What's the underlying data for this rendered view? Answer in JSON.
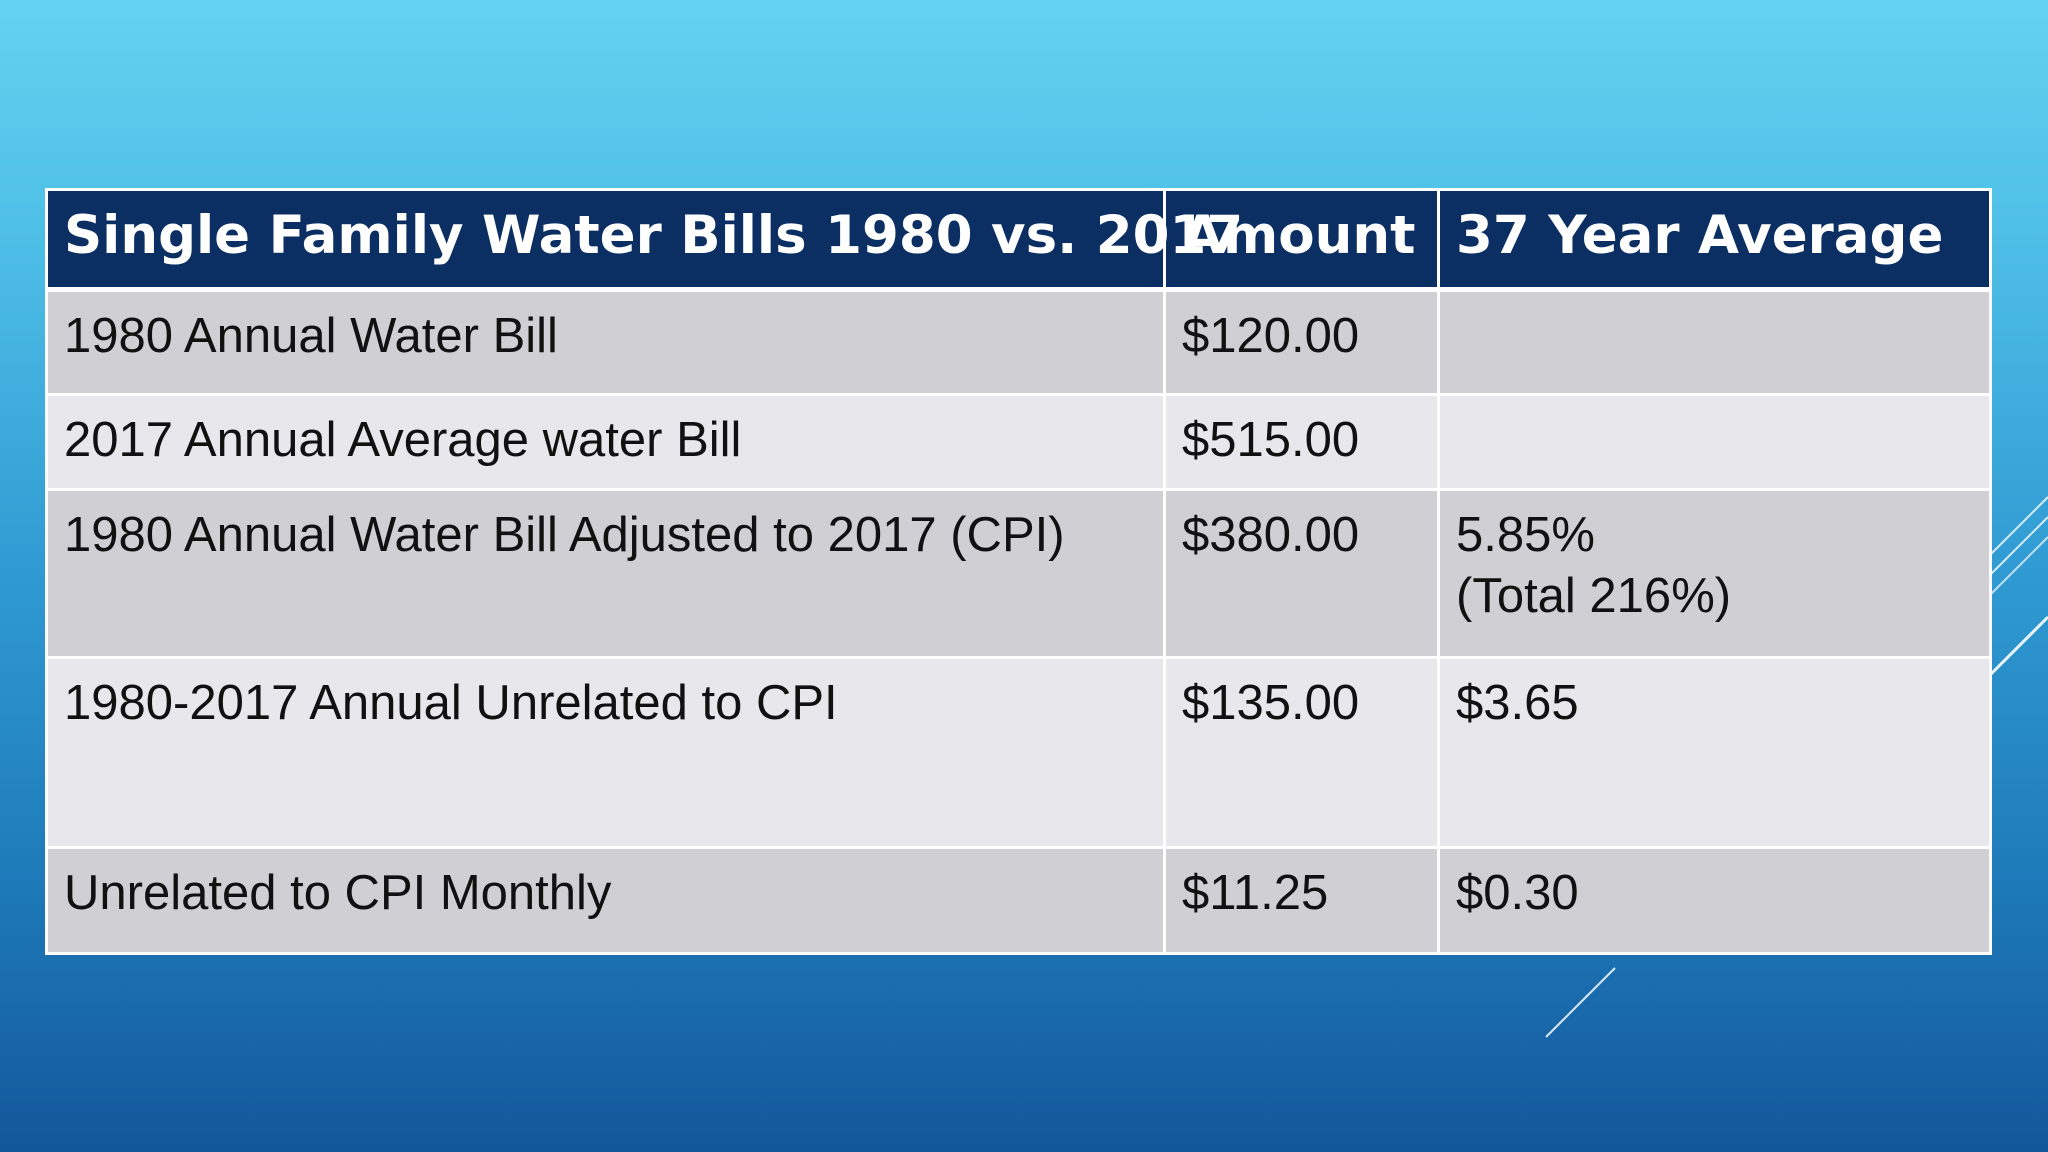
{
  "table": {
    "headers": [
      "Single Family Water Bills 1980 vs. 2017",
      "Amount",
      "37 Year Average"
    ],
    "rows": [
      {
        "label": "1980 Annual Water Bill",
        "amount": "$120.00",
        "average_line1": "",
        "average_line2": ""
      },
      {
        "label": "2017 Annual Average water Bill",
        "amount": "$515.00",
        "average_line1": "",
        "average_line2": ""
      },
      {
        "label": "1980 Annual Water Bill Adjusted to 2017 (CPI)",
        "amount": "$380.00",
        "average_line1": "5.85%",
        "average_line2": "(Total 216%)"
      },
      {
        "label": "1980-2017 Annual Unrelated to CPI",
        "amount": "$135.00",
        "average_line1": "$3.65",
        "average_line2": ""
      },
      {
        "label": "Unrelated to CPI Monthly",
        "amount": "$11.25",
        "average_line1": "$0.30",
        "average_line2": ""
      }
    ]
  },
  "colors": {
    "header_background": "#0b2e63",
    "row_dark": "#cfcfd4",
    "row_light": "#e8e8ec",
    "background_top": "#63d3f0",
    "background_bottom": "#13579a"
  }
}
